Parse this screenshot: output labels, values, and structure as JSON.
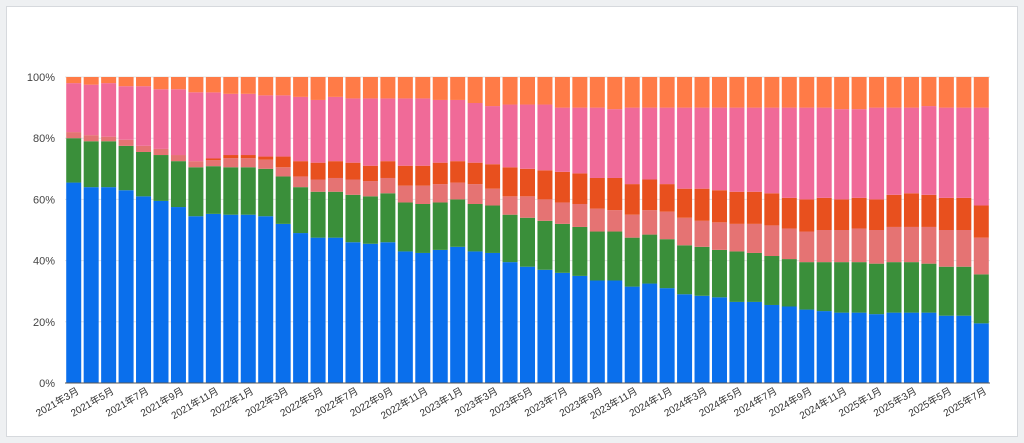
{
  "chart_data": {
    "type": "bar",
    "stacked": true,
    "normalized": true,
    "title": "",
    "xlabel": "",
    "ylabel": "",
    "ylim": [
      0,
      100
    ],
    "y_ticks": [
      "0%",
      "20%",
      "40%",
      "60%",
      "80%",
      "100%"
    ],
    "grid": true,
    "legend": "none",
    "categories": [
      "2021年3月",
      "2021年4月",
      "2021年5月",
      "2021年6月",
      "2021年7月",
      "2021年8月",
      "2021年9月",
      "2021年10月",
      "2021年11月",
      "2021年12月",
      "2022年1月",
      "2022年2月",
      "2022年3月",
      "2022年4月",
      "2022年5月",
      "2022年6月",
      "2022年7月",
      "2022年8月",
      "2022年9月",
      "2022年10月",
      "2022年11月",
      "2022年12月",
      "2023年1月",
      "2023年2月",
      "2023年3月",
      "2023年4月",
      "2023年5月",
      "2023年6月",
      "2023年7月",
      "2023年8月",
      "2023年9月",
      "2023年10月",
      "2023年11月",
      "2023年12月",
      "2024年1月",
      "2024年2月",
      "2024年3月",
      "2024年4月",
      "2024年5月",
      "2024年6月",
      "2024年7月",
      "2024年8月",
      "2024年9月",
      "2024年10月",
      "2024年11月",
      "2024年12月",
      "2025年1月",
      "2025年2月",
      "2025年3月",
      "2025年4月",
      "2025年5月",
      "2025年6月",
      "2025年7月"
    ],
    "x_tick_labels": [
      "2021年3月",
      "2021年5月",
      "2021年7月",
      "2021年9月",
      "2021年11月",
      "2022年1月",
      "2022年3月",
      "2022年5月",
      "2022年7月",
      "2022年9月",
      "2022年11月",
      "2023年1月",
      "2023年3月",
      "2023年5月",
      "2023年7月",
      "2023年9月",
      "2023年11月",
      "2024年1月",
      "2024年3月",
      "2024年5月",
      "2024年7月",
      "2024年9月",
      "2024年11月",
      "2025年1月",
      "2025年3月",
      "2025年5月",
      "2025年7月"
    ],
    "series": [
      {
        "color": "#0a6fec",
        "values": [
          65.5,
          64,
          64,
          63,
          61,
          59.5,
          57.5,
          54.5,
          55,
          55,
          55,
          54.5,
          52,
          49,
          47.5,
          47.5,
          46,
          45.5,
          46,
          43,
          42.5,
          43.5,
          44.5,
          43,
          42.5,
          39.5,
          38,
          37,
          36,
          35,
          33.5,
          33.5,
          31.5,
          32.5,
          31,
          29,
          28.5,
          28,
          26.5,
          26.5,
          25.5,
          25,
          24,
          23.5,
          23,
          23,
          22.5,
          23,
          23,
          23,
          22,
          22,
          19.5
        ]
      },
      {
        "color": "#3a8f3a",
        "values": [
          14.5,
          15,
          15,
          14.5,
          14.5,
          15,
          15,
          16,
          15.5,
          15.5,
          15.5,
          15.5,
          15.5,
          15,
          15,
          15,
          15.5,
          15.5,
          16,
          16,
          16,
          15.5,
          15.5,
          15.5,
          15.5,
          15.5,
          16,
          16,
          16,
          16,
          16,
          16,
          16,
          16,
          16,
          16,
          16,
          15.5,
          16.5,
          16,
          16,
          15.5,
          15.5,
          16,
          16.5,
          16.5,
          16.5,
          16.5,
          16.5,
          16,
          16,
          16,
          16
        ]
      },
      {
        "color": "#e57373",
        "values": [
          2,
          2,
          1.5,
          2,
          2,
          2,
          2,
          2,
          2,
          3,
          3,
          3,
          3,
          3.5,
          4,
          4.5,
          5,
          5,
          5,
          5.5,
          6,
          6,
          5.5,
          6.5,
          5.5,
          6,
          7,
          7,
          7,
          7.5,
          7.5,
          7,
          7.5,
          8,
          9,
          9,
          8.5,
          9,
          9,
          9.5,
          10,
          10,
          10,
          10.5,
          10.5,
          11,
          11,
          11.5,
          11.5,
          12,
          12,
          12,
          12
        ]
      },
      {
        "color": "#e8501e",
        "values": [
          0,
          0,
          0,
          0,
          0,
          0,
          0,
          0,
          0.5,
          1,
          1,
          1,
          3.5,
          5,
          5.5,
          5.5,
          5.5,
          5,
          5.5,
          6.5,
          6.5,
          7,
          7,
          7,
          8,
          9.5,
          9,
          9.5,
          10,
          10,
          10,
          10.5,
          10,
          10,
          9,
          9.5,
          10.5,
          10.5,
          10.5,
          10.5,
          10.5,
          10,
          10.5,
          10.5,
          10,
          10,
          10,
          10.5,
          11,
          10.5,
          10.5,
          10.5,
          10.5
        ]
      },
      {
        "color": "#f06a98",
        "values": [
          16,
          16.5,
          17.5,
          17.5,
          19.5,
          19.5,
          21.5,
          22.5,
          21.5,
          20,
          20,
          20,
          20,
          21,
          20.5,
          21,
          21,
          22,
          20.5,
          22,
          22,
          20.5,
          20,
          19.5,
          19,
          20.5,
          21,
          21.5,
          21,
          21.5,
          23,
          22.5,
          25,
          23.5,
          25,
          26.5,
          26.5,
          27,
          27.5,
          27.5,
          28,
          29.5,
          30,
          29.5,
          29.5,
          29,
          30,
          28.5,
          28,
          29,
          29.5,
          29.5,
          32
        ]
      },
      {
        "color": "#ff7b47",
        "values": [
          2,
          2.5,
          2,
          3,
          3,
          4,
          4,
          5,
          5,
          5.5,
          5.5,
          6,
          6,
          6.5,
          7.5,
          6.5,
          7,
          7,
          7,
          7,
          7,
          7.5,
          7.5,
          8.5,
          9.5,
          9,
          9,
          9,
          10,
          10,
          10,
          10.5,
          10,
          10,
          10,
          10,
          10,
          10,
          10,
          10,
          10,
          10,
          10,
          10,
          10.5,
          10.5,
          10,
          10,
          10,
          9.5,
          10,
          10,
          10
        ]
      }
    ]
  }
}
